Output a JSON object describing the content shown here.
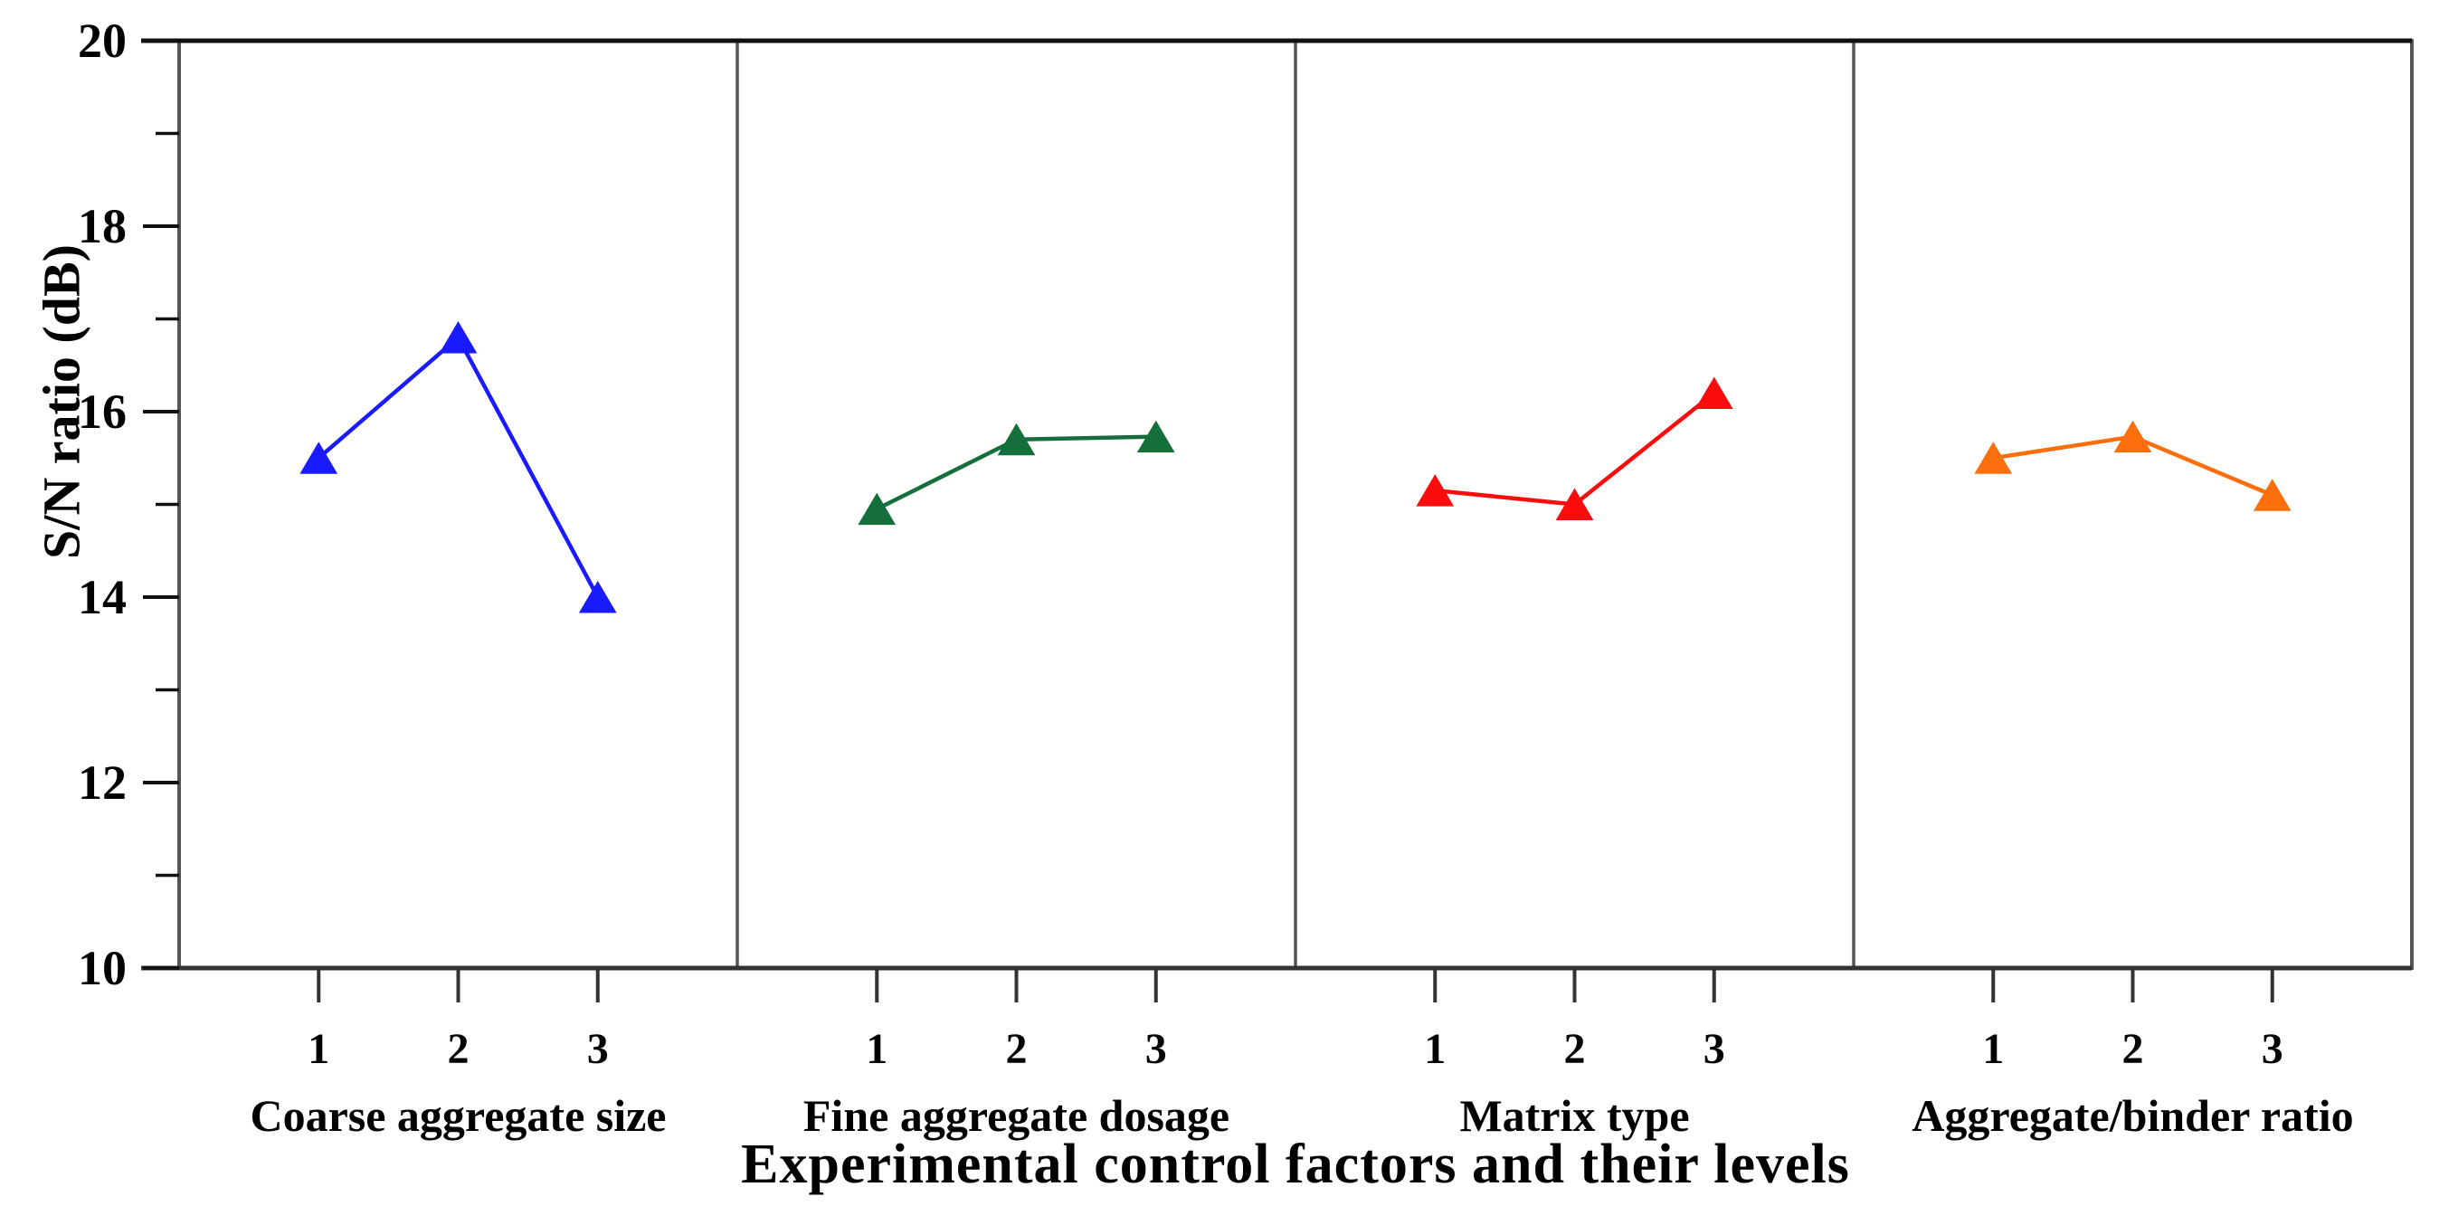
{
  "chart_data": {
    "type": "line",
    "title": "",
    "xlabel": "Experimental control factors and their levels",
    "ylabel": "S/N ratio (dB)",
    "y_axis": {
      "min": 10,
      "max": 20,
      "major_ticks": [
        20,
        18,
        16,
        14,
        12,
        10
      ],
      "minor_ticks": [
        19,
        17,
        15,
        13,
        11
      ],
      "grid": false
    },
    "legend_position": "none",
    "marker": "triangle-up",
    "levels": [
      "1",
      "2",
      "3"
    ],
    "panels": [
      {
        "factor": "Coarse aggregate size",
        "color": "#1a1aff",
        "x": [
          1,
          2,
          3
        ],
        "values": [
          15.5,
          16.8,
          14.0
        ]
      },
      {
        "factor": "Fine aggregate dosage",
        "color": "#156f3a",
        "x": [
          1,
          2,
          3
        ],
        "values": [
          14.95,
          15.7,
          15.73
        ]
      },
      {
        "factor": "Matrix type",
        "color": "#fb0d0d",
        "x": [
          1,
          2,
          3
        ],
        "values": [
          15.15,
          15.0,
          16.2
        ]
      },
      {
        "factor": "Aggregate/binder ratio",
        "color": "#fd6e0d",
        "x": [
          1,
          2,
          3
        ],
        "values": [
          15.5,
          15.73,
          15.1
        ]
      }
    ],
    "axis_color": "#2a2a2a",
    "box_color": "#555555"
  },
  "layout_text": {
    "note": ""
  }
}
